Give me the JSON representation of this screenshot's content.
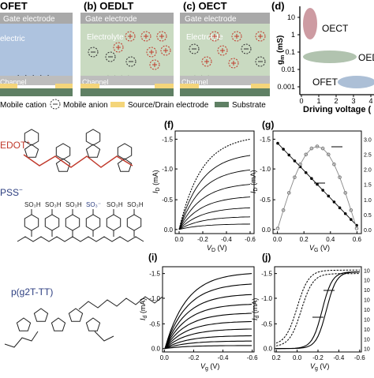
{
  "panels": {
    "a": {
      "label": "OFET",
      "cation_row": "+ + + + +",
      "channel": "Channel",
      "dielectric": "electric"
    },
    "b": {
      "label": "(b) OEDLT",
      "gate": "Gate electrode",
      "electrolyte": "Electrolyte",
      "channel": "Channel"
    },
    "c": {
      "label": "(c) OECT",
      "gate": "Gate electrode",
      "electrolyte": "Electrolyte",
      "channel": "Channel"
    },
    "a_gate": "Gate electrode",
    "d": {
      "label": "(d)",
      "ylabel_main": "g",
      "ylabel_sub": "m",
      "ylabel_unit": " (mS)",
      "xlabel": "Driving voltage (",
      "yticks": [
        "10",
        "1",
        "0.1",
        "0.01",
        "0.001"
      ],
      "xticks": [
        "0",
        "1",
        "2",
        "3",
        "4"
      ],
      "blobs": [
        {
          "name": "OECT",
          "color": "#c48a92"
        },
        {
          "name": "OED",
          "color": "#a9bda6"
        },
        {
          "name": "OFET",
          "color": "#a3b8d2"
        }
      ]
    }
  },
  "legend": {
    "cation": "Mobile cation",
    "anion": "Mobile anion",
    "electrode": "Source/Drain electrode",
    "substrate": "Substrate"
  },
  "chem": {
    "pedot": "EDOT",
    "pedot_sup": "+",
    "pss": "PSS",
    "pss_sup": "−",
    "so3h": "SO₃H",
    "so3minus": "SO₃⁻",
    "p2": "p(g2T-TT)",
    "n": "n"
  },
  "plot_f": {
    "label": "(f)",
    "ylabel": "I",
    "ylabel_sub": "D",
    "ylabel_unit": " (mA)",
    "xlabel": "V",
    "xlabel_sub": "D",
    "xlabel_unit": " (V)",
    "yticks": [
      "-1.5",
      "-1.0",
      "-0.5",
      "0.0"
    ],
    "xticks": [
      "0.0",
      "-0.2",
      "-0.4",
      "-0.6"
    ]
  },
  "plot_g": {
    "label": "(g)",
    "ylabel": "I",
    "ylabel_sub": "D",
    "ylabel_unit": " (mA)",
    "xlabel": "V",
    "xlabel_sub": "G",
    "xlabel_unit": " (V)",
    "yticks": [
      "-1.5",
      "-1.0",
      "-0.5",
      "0.0"
    ],
    "xticks": [
      "0.0",
      "0.2",
      "0.4",
      "0.6"
    ],
    "right_ticks": [
      "3.0",
      "2.5",
      "2.0",
      "1.5",
      "1.0",
      "0.5",
      "0.0"
    ]
  },
  "plot_i": {
    "label": "(i)",
    "ylabel": "I",
    "ylabel_sub": "d",
    "ylabel_unit": " (mA)",
    "xlabel": "V",
    "xlabel_sub": "g",
    "xlabel_unit": " (V)",
    "yticks": [
      "-1.5",
      "-1.0",
      "-0.5",
      "0.0"
    ],
    "xticks": [
      "0.0",
      "-0.2",
      "-0.4",
      "-0.6"
    ]
  },
  "plot_j": {
    "label": "(j)",
    "ylabel": "I",
    "ylabel_sub": "d",
    "ylabel_unit": " (mA)",
    "xlabel": "V",
    "xlabel_sub": "g",
    "xlabel_unit": " (V)",
    "yticks": [
      "-1.5",
      "-1.0",
      "-0.5",
      "0.0"
    ],
    "xticks": [
      "0.2",
      "0.0",
      "-0.2",
      "-0.4",
      "-0.6"
    ],
    "right_ticks": [
      "10",
      "10",
      "10",
      "10",
      "10",
      "10",
      "10",
      "10",
      "10"
    ]
  }
}
